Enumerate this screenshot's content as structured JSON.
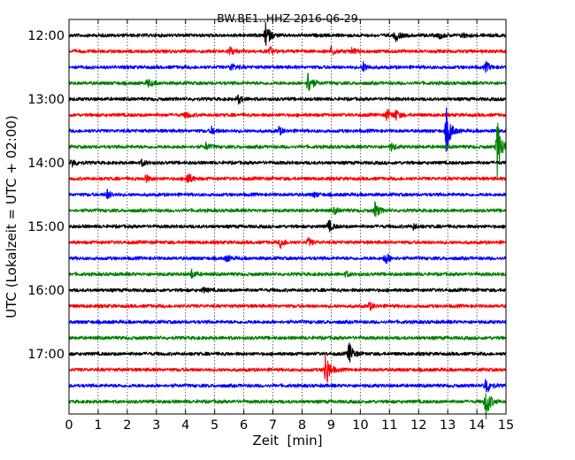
{
  "chart_data": {
    "type": "line",
    "title": "BW.BE1..HHZ 2016-06-29",
    "xlabel": "Zeit  [min]",
    "ylabel": "UTC (Lokalzeit = UTC + 02:00)",
    "xlim": [
      0,
      15
    ],
    "x_ticks": [
      "0",
      "1",
      "2",
      "3",
      "4",
      "5",
      "6",
      "7",
      "8",
      "9",
      "10",
      "11",
      "12",
      "13",
      "14",
      "15"
    ],
    "y_tick_labels": [
      "12:00",
      "13:00",
      "14:00",
      "15:00",
      "16:00",
      "17:00"
    ],
    "grid": "vertical-dotted",
    "trace_interval_minutes": 15,
    "series_colors": [
      "#000000",
      "#ff0000",
      "#0000ff",
      "#008000"
    ],
    "traces": [
      {
        "time": "12:00",
        "color": "#000000",
        "events": [
          {
            "x": 6.75,
            "amp": 1.0
          },
          {
            "x": 11.2,
            "amp": 0.5
          },
          {
            "x": 12.7,
            "amp": 0.25
          },
          {
            "x": 13.5,
            "amp": 0.2
          }
        ]
      },
      {
        "time": "12:15",
        "color": "#ff0000",
        "events": [
          {
            "x": 5.5,
            "amp": 0.4
          },
          {
            "x": 6.9,
            "amp": 0.3
          },
          {
            "x": 9.0,
            "amp": 0.35
          },
          {
            "x": 9.7,
            "amp": 0.25
          }
        ]
      },
      {
        "time": "12:30",
        "color": "#0000ff",
        "events": [
          {
            "x": 5.55,
            "amp": 0.35
          },
          {
            "x": 10.1,
            "amp": 0.4
          },
          {
            "x": 14.3,
            "amp": 0.4
          }
        ]
      },
      {
        "time": "12:45",
        "color": "#008000",
        "events": [
          {
            "x": 2.7,
            "amp": 0.35
          },
          {
            "x": 8.2,
            "amp": 1.0
          }
        ]
      },
      {
        "time": "13:00",
        "color": "#000000",
        "events": [
          {
            "x": 5.8,
            "amp": 0.35
          }
        ]
      },
      {
        "time": "13:15",
        "color": "#ff0000",
        "events": [
          {
            "x": 4.0,
            "amp": 0.25
          },
          {
            "x": 10.9,
            "amp": 0.45
          },
          {
            "x": 11.2,
            "amp": 0.4
          }
        ]
      },
      {
        "time": "13:30",
        "color": "#0000ff",
        "events": [
          {
            "x": 4.9,
            "amp": 0.3
          },
          {
            "x": 7.2,
            "amp": 0.3
          },
          {
            "x": 12.95,
            "amp": 1.9
          }
        ]
      },
      {
        "time": "13:45",
        "color": "#008000",
        "events": [
          {
            "x": 4.7,
            "amp": 0.3
          },
          {
            "x": 11.05,
            "amp": 0.3
          },
          {
            "x": 14.7,
            "amp": 2.4
          }
        ]
      },
      {
        "time": "14:00",
        "color": "#000000",
        "events": [
          {
            "x": 0.1,
            "amp": 0.35
          },
          {
            "x": 2.5,
            "amp": 0.25
          }
        ]
      },
      {
        "time": "14:15",
        "color": "#ff0000",
        "events": [
          {
            "x": 2.6,
            "amp": 0.35
          },
          {
            "x": 4.05,
            "amp": 0.55
          }
        ]
      },
      {
        "time": "14:30",
        "color": "#0000ff",
        "events": [
          {
            "x": 1.3,
            "amp": 0.4
          },
          {
            "x": 8.4,
            "amp": 0.2
          }
        ]
      },
      {
        "time": "14:45",
        "color": "#008000",
        "events": [
          {
            "x": 9.1,
            "amp": 0.25
          },
          {
            "x": 10.5,
            "amp": 0.65
          }
        ]
      },
      {
        "time": "15:00",
        "color": "#000000",
        "events": [
          {
            "x": 8.9,
            "amp": 0.5
          },
          {
            "x": 11.8,
            "amp": 0.25
          }
        ]
      },
      {
        "time": "15:15",
        "color": "#ff0000",
        "events": [
          {
            "x": 7.25,
            "amp": 0.4
          },
          {
            "x": 8.2,
            "amp": 0.35
          }
        ]
      },
      {
        "time": "15:30",
        "color": "#0000ff",
        "events": [
          {
            "x": 5.4,
            "amp": 0.25
          },
          {
            "x": 10.85,
            "amp": 0.55
          }
        ]
      },
      {
        "time": "15:45",
        "color": "#008000",
        "events": [
          {
            "x": 4.2,
            "amp": 0.35
          },
          {
            "x": 9.5,
            "amp": 0.2
          }
        ]
      },
      {
        "time": "16:00",
        "color": "#000000",
        "events": [
          {
            "x": 4.6,
            "amp": 0.2
          }
        ]
      },
      {
        "time": "16:15",
        "color": "#ff0000",
        "events": [
          {
            "x": 10.3,
            "amp": 0.3
          }
        ]
      },
      {
        "time": "16:30",
        "color": "#0000ff",
        "events": []
      },
      {
        "time": "16:45",
        "color": "#008000",
        "events": []
      },
      {
        "time": "17:00",
        "color": "#000000",
        "events": [
          {
            "x": 9.6,
            "amp": 1.0
          }
        ]
      },
      {
        "time": "17:15",
        "color": "#ff0000",
        "events": [
          {
            "x": 8.8,
            "amp": 1.6
          }
        ]
      },
      {
        "time": "17:30",
        "color": "#0000ff",
        "events": [
          {
            "x": 14.3,
            "amp": 0.8
          }
        ]
      },
      {
        "time": "17:45",
        "color": "#008000",
        "events": [
          {
            "x": 14.3,
            "amp": 1.5
          }
        ]
      }
    ]
  }
}
